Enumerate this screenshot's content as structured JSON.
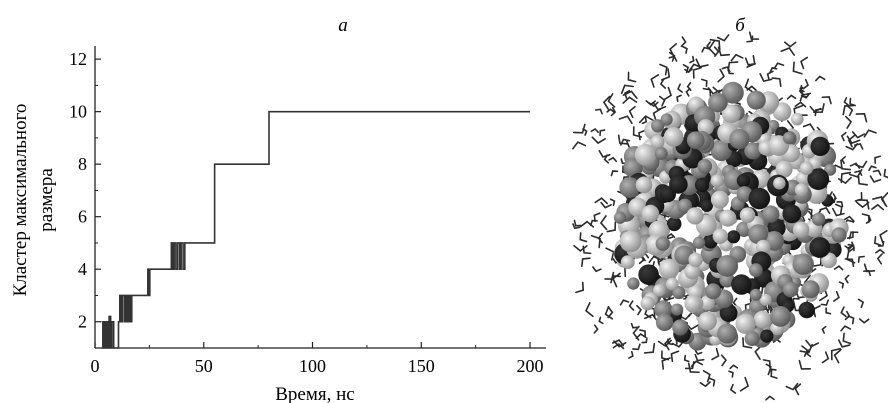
{
  "panels": {
    "left_label": "а",
    "right_label": "б"
  },
  "chart_data": {
    "type": "line",
    "xlabel": "Время, нс",
    "ylabel_lines": [
      "Кластер максимального",
      "размера"
    ],
    "xlim": [
      0,
      200
    ],
    "ylim": [
      1,
      12.5
    ],
    "x_ticks": [
      0,
      50,
      100,
      150,
      200
    ],
    "y_ticks": [
      2,
      4,
      6,
      8,
      10,
      12
    ],
    "grid": false,
    "line_color": "#333333",
    "series": [
      {
        "steps": [
          [
            3,
            2
          ],
          [
            3.6,
            1
          ],
          [
            4.2,
            2
          ],
          [
            4.8,
            1
          ],
          [
            5.3,
            2
          ],
          [
            5.9,
            1
          ],
          [
            6.5,
            2.2
          ],
          [
            7.2,
            1
          ],
          [
            7.8,
            2
          ],
          [
            8.6,
            1
          ],
          [
            9.6,
            1
          ],
          [
            10.8,
            2
          ],
          [
            11.4,
            3
          ],
          [
            11.9,
            2
          ],
          [
            12.5,
            3
          ],
          [
            13.4,
            2
          ],
          [
            14.1,
            3
          ],
          [
            14.8,
            2
          ],
          [
            15.5,
            3
          ],
          [
            16.2,
            2
          ],
          [
            16.9,
            3
          ],
          [
            24,
            3
          ],
          [
            24.3,
            4
          ],
          [
            24.7,
            3
          ],
          [
            25.2,
            4
          ],
          [
            34.5,
            4
          ],
          [
            35.1,
            5
          ],
          [
            35.7,
            4
          ],
          [
            36.4,
            5
          ],
          [
            37.2,
            4
          ],
          [
            38,
            5
          ],
          [
            38.9,
            4
          ],
          [
            39.6,
            5
          ],
          [
            40.5,
            4
          ],
          [
            41.3,
            5
          ],
          [
            55,
            5
          ],
          [
            55,
            8
          ],
          [
            80,
            8
          ],
          [
            80,
            10
          ],
          [
            200,
            10
          ]
        ]
      }
    ]
  },
  "molecule": {
    "description_colors": {
      "dark": "#3a3a3a",
      "mid": "#8a8a8a",
      "light": "#d6d6d6",
      "water": "#2b2b2b"
    }
  }
}
